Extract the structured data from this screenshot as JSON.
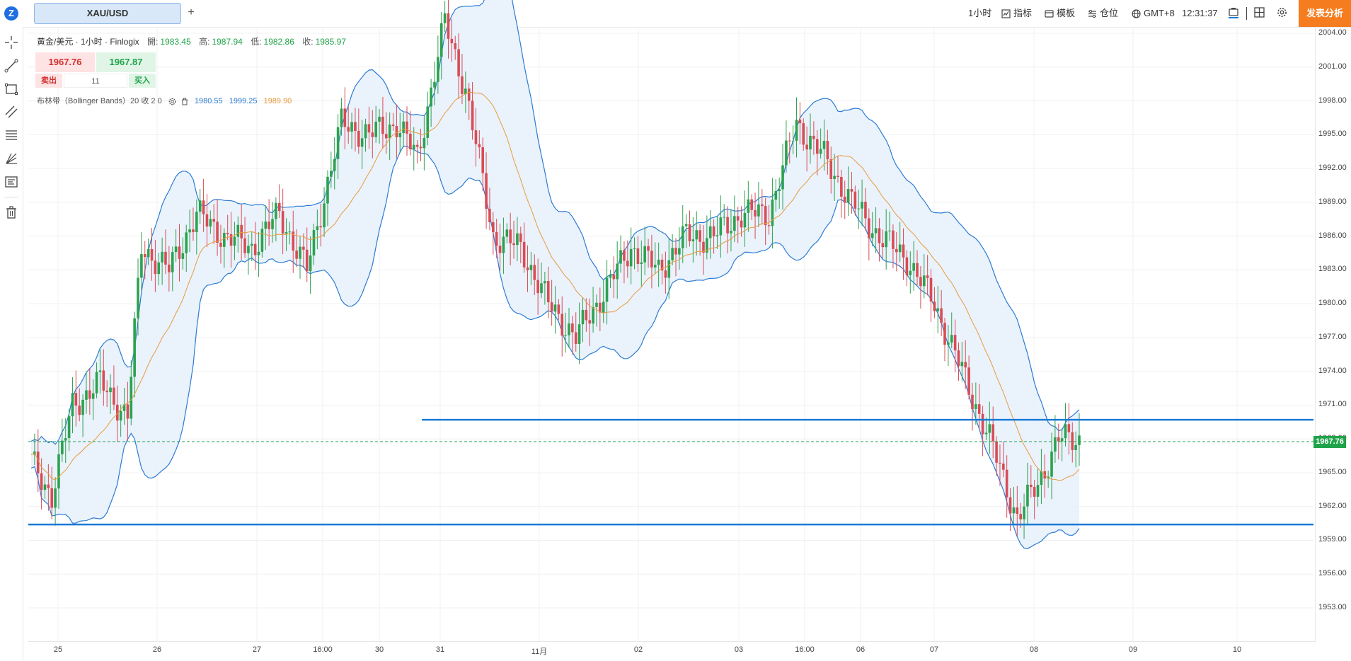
{
  "topbar": {
    "symbol_tab": "XAU/USD",
    "add_tab": "+",
    "timeframe": "1小时",
    "indicators": "指标",
    "templates": "模板",
    "positions": "仓位",
    "timezone": "GMT+8",
    "clock": "12:31:37",
    "publish": "发表分析"
  },
  "legend": {
    "title": "黄金/美元 · 1小时 · Finlogix",
    "open_label": "開:",
    "open": "1983.45",
    "high_label": "高:",
    "high": "1987.94",
    "low_label": "低:",
    "low": "1982.86",
    "close_label": "收:",
    "close": "1985.97"
  },
  "trade": {
    "sell_price": "1967.76",
    "buy_price": "1967.87",
    "sell_label": "卖出",
    "quantity": "11",
    "buy_label": "买入"
  },
  "indicator": {
    "name": "布林带（Bollinger Bands）20 收 2 0",
    "lower": "1980.55",
    "upper": "1999.25",
    "middle": "1989.90"
  },
  "price_tag": "1967.76",
  "chart_data": {
    "type": "candlestick",
    "instrument": "XAU/USD",
    "ylim": [
      1951,
      2005
    ],
    "y_ticks": [
      "2004.00",
      "2001.00",
      "1998.00",
      "1995.00",
      "1992.00",
      "1989.00",
      "1986.00",
      "1983.00",
      "1980.00",
      "1977.00",
      "1974.00",
      "1971.00",
      "1968.00",
      "1965.00",
      "1962.00",
      "1959.00",
      "1956.00",
      "1953.00"
    ],
    "x_ticks": [
      "25",
      "26",
      "27",
      "16:00",
      "30",
      "31",
      "11月",
      "02",
      "03",
      "16:00",
      "06",
      "07",
      "08",
      "09",
      "10"
    ],
    "current_price": 1967.76,
    "horizontal_lines": [
      1969.7,
      1960.4
    ],
    "colors": {
      "up": "#2ca24f",
      "down": "#d94c56",
      "band": "#2b7cd3",
      "mid": "#e89a3c",
      "band_fill": "#e6f0fb",
      "hline": "#1a7ad6",
      "price_line": "#1fa349"
    }
  },
  "icons": {
    "crosshair": "crosshair-icon",
    "trend": "trendline-icon",
    "rect": "rectangle-icon",
    "channel": "channel-icon",
    "fib": "fibonacci-icon",
    "gann": "gann-icon",
    "text": "text-note-icon",
    "trash": "trash-icon"
  }
}
